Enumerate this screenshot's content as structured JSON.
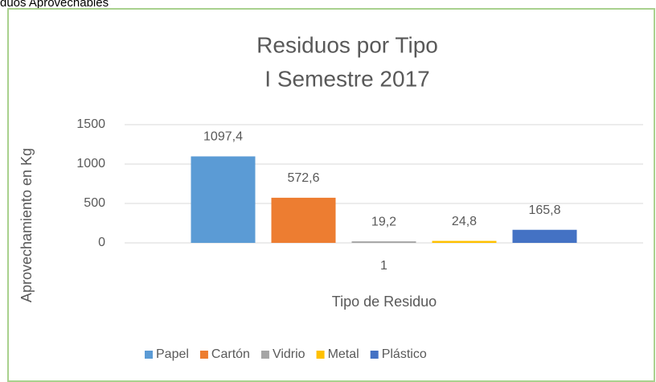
{
  "caption": "duos Aprovechables",
  "chart_data": {
    "type": "bar",
    "title": [
      "Residuos por Tipo",
      "I Semestre 2017"
    ],
    "y_label": "Aprovechamiento en Kg",
    "x_label": "Tipo de Residuo",
    "categories": [
      "1"
    ],
    "series": [
      {
        "name": "Papel",
        "color": "#5b9bd5",
        "values": [
          1097.4
        ],
        "value_labels": [
          "1097,4"
        ]
      },
      {
        "name": "Cartón",
        "color": "#ed7d31",
        "values": [
          572.6
        ],
        "value_labels": [
          "572,6"
        ]
      },
      {
        "name": "Vidrio",
        "color": "#a5a5a5",
        "values": [
          19.2
        ],
        "value_labels": [
          "19,2"
        ]
      },
      {
        "name": "Metal",
        "color": "#ffc000",
        "values": [
          24.8
        ],
        "value_labels": [
          "24,8"
        ]
      },
      {
        "name": "Plástico",
        "color": "#4472c4",
        "values": [
          165.8
        ],
        "value_labels": [
          "165,8"
        ]
      }
    ],
    "ylim": [
      0,
      1500
    ],
    "yticks": [
      0,
      500,
      1000,
      1500
    ],
    "grid": true,
    "legend": "bottom"
  }
}
